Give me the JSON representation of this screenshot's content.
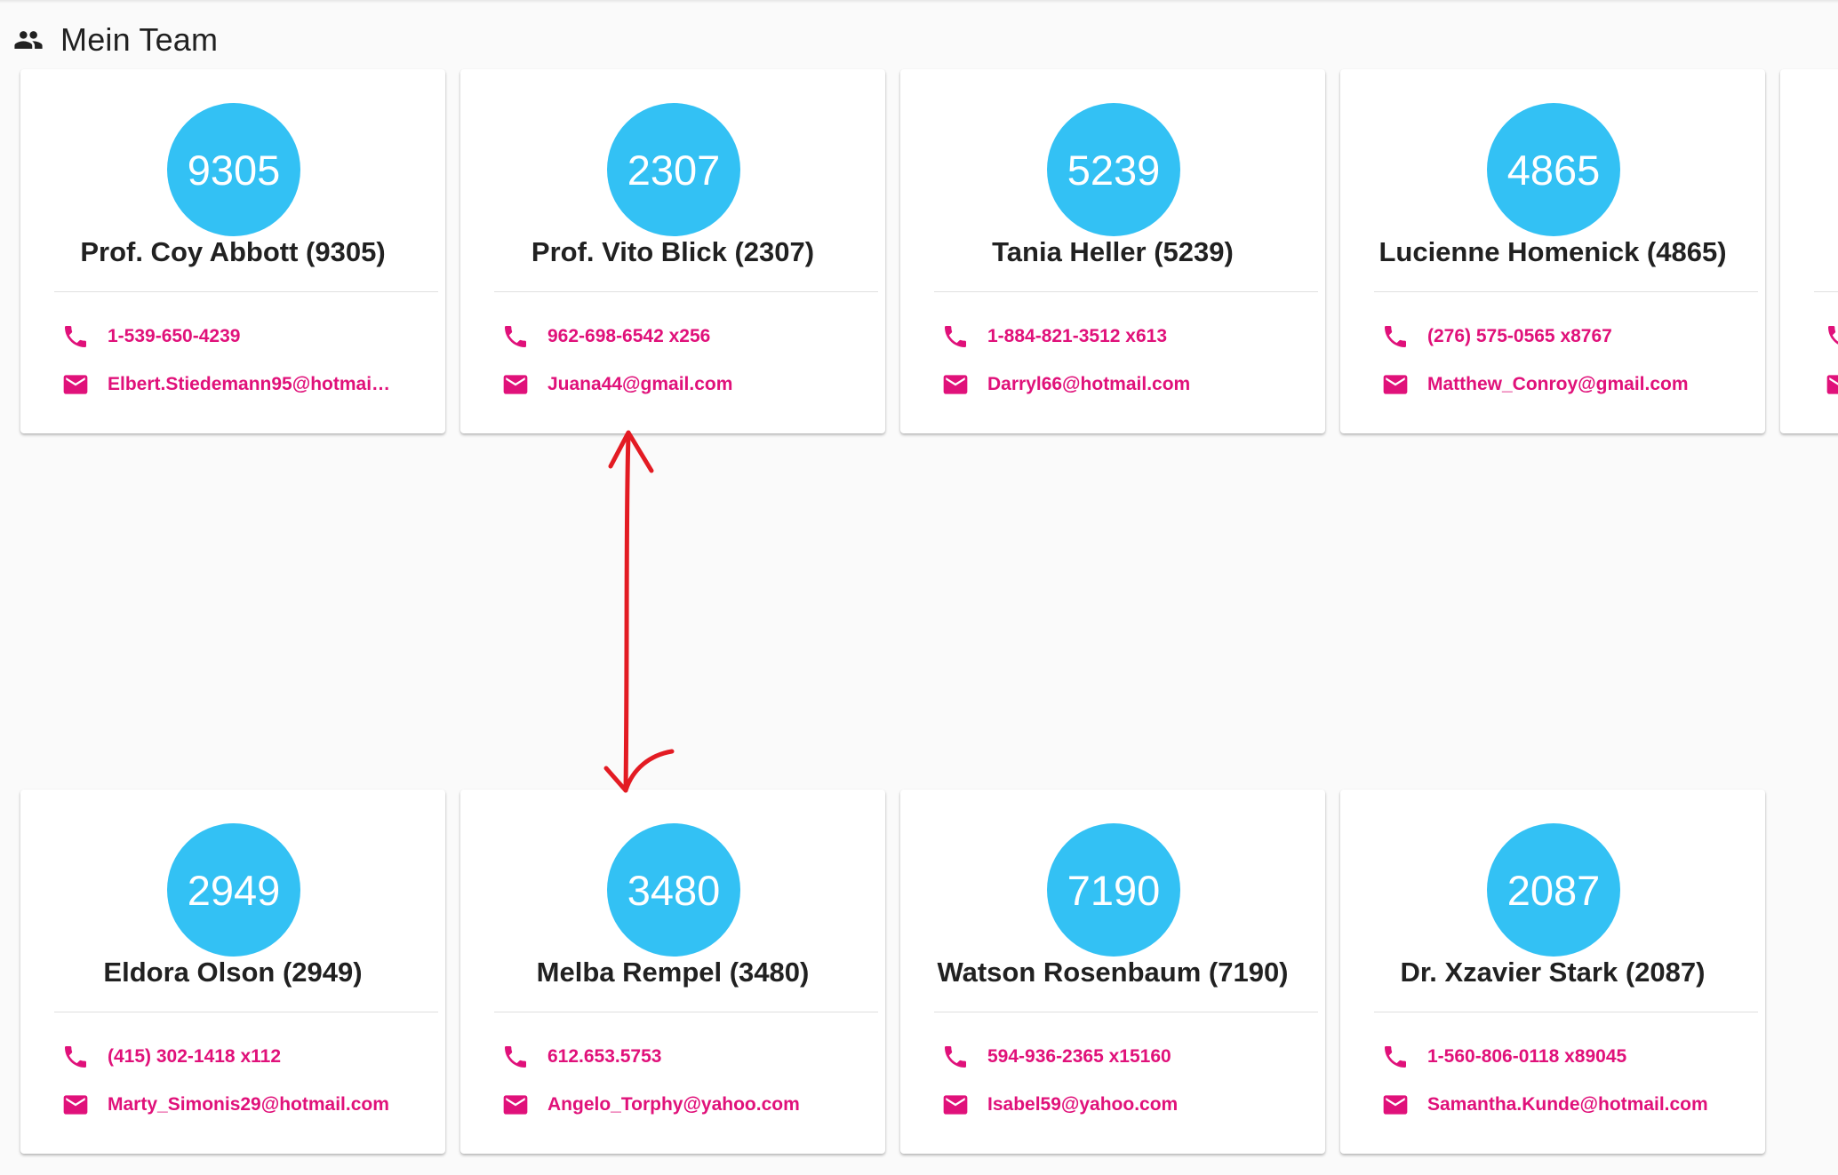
{
  "header": {
    "title": "Mein Team",
    "icon": "people-icon"
  },
  "colors": {
    "avatar": "#33c1f4",
    "link": "#e0117a",
    "arrow": "#e31b23"
  },
  "members": [
    {
      "avatar_text": "9305",
      "name": "Prof. Coy Abbott (9305)",
      "phone": "1-539-650-4239",
      "email": "Elbert.Stiedemann95@hotmail.c..."
    },
    {
      "avatar_text": "2307",
      "name": "Prof. Vito Blick (2307)",
      "phone": "962-698-6542 x256",
      "email": "Juana44@gmail.com"
    },
    {
      "avatar_text": "5239",
      "name": "Tania Heller (5239)",
      "phone": "1-884-821-3512 x613",
      "email": "Darryl66@hotmail.com"
    },
    {
      "avatar_text": "4865",
      "name": "Lucienne Homenick (4865)",
      "phone": "(276) 575-0565 x8767",
      "email": "Matthew_Conroy@gmail.com"
    },
    {
      "avatar_text": "2949",
      "name": "Eldora Olson (2949)",
      "phone": "(415) 302-1418 x112",
      "email": "Marty_Simonis29@hotmail.com"
    },
    {
      "avatar_text": "3480",
      "name": "Melba Rempel (3480)",
      "phone": "612.653.5753",
      "email": "Angelo_Torphy@yahoo.com"
    },
    {
      "avatar_text": "7190",
      "name": "Watson Rosenbaum (7190)",
      "phone": "594-936-2365 x15160",
      "email": "Isabel59@yahoo.com"
    },
    {
      "avatar_text": "2087",
      "name": "Dr. Xzavier Stark (2087)",
      "phone": "1-560-806-0118 x89045",
      "email": "Samantha.Kunde@hotmail.com"
    }
  ]
}
